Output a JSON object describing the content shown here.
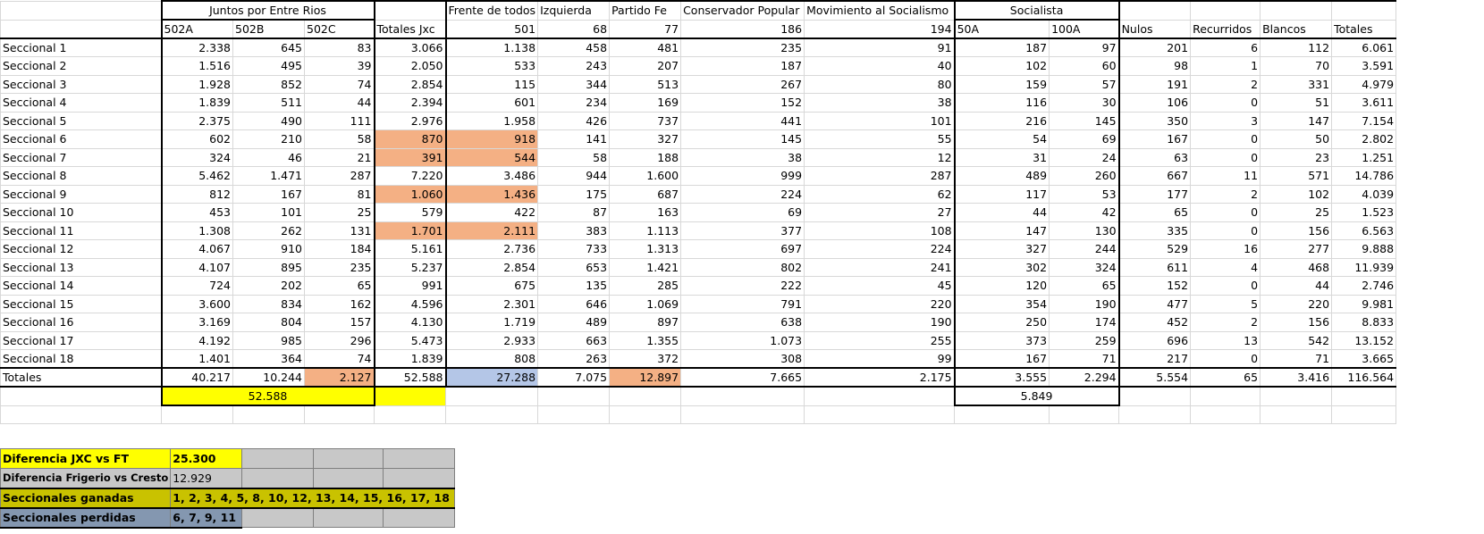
{
  "headers": {
    "group_jxc": "Juntos por Entre Rios",
    "sub_502a": "502A",
    "sub_502b": "502B",
    "sub_502c": "502C",
    "totales_jxc": "Totales Jxc",
    "frente": "Frente de todos",
    "frente_num": "501",
    "izquierda": "Izquierda",
    "izquierda_num": "68",
    "partido_fe": "Partido Fe",
    "partido_fe_num": "77",
    "conservador": "Conservador Popular",
    "conservador_num": "186",
    "mas": "Movimiento al Socialismo",
    "mas_num": "194",
    "socialista": "Socialista",
    "sub_50a": "50A",
    "sub_100a": "100A",
    "nulos": "Nulos",
    "recurridos": "Recurridos",
    "blancos": "Blancos",
    "totales": "Totales"
  },
  "rows": [
    {
      "label": "Seccional 1",
      "v": [
        "2.338",
        "645",
        "83",
        "3.066",
        "1.138",
        "458",
        "481",
        "235",
        "91",
        "187",
        "97",
        "201",
        "6",
        "112",
        "6.061"
      ]
    },
    {
      "label": "Seccional 2",
      "v": [
        "1.516",
        "495",
        "39",
        "2.050",
        "533",
        "243",
        "207",
        "187",
        "40",
        "102",
        "60",
        "98",
        "1",
        "70",
        "3.591"
      ]
    },
    {
      "label": "Seccional 3",
      "v": [
        "1.928",
        "852",
        "74",
        "2.854",
        "115",
        "344",
        "513",
        "267",
        "80",
        "159",
        "57",
        "191",
        "2",
        "331",
        "4.979"
      ]
    },
    {
      "label": "Seccional 4",
      "v": [
        "1.839",
        "511",
        "44",
        "2.394",
        "601",
        "234",
        "169",
        "152",
        "38",
        "116",
        "30",
        "106",
        "0",
        "51",
        "3.611"
      ]
    },
    {
      "label": "Seccional 5",
      "v": [
        "2.375",
        "490",
        "111",
        "2.976",
        "1.958",
        "426",
        "737",
        "441",
        "101",
        "216",
        "145",
        "350",
        "3",
        "147",
        "7.154"
      ]
    },
    {
      "label": "Seccional 6",
      "v": [
        "602",
        "210",
        "58",
        "870",
        "918",
        "141",
        "327",
        "145",
        "55",
        "54",
        "69",
        "167",
        "0",
        "50",
        "2.802"
      ]
    },
    {
      "label": "Seccional 7",
      "v": [
        "324",
        "46",
        "21",
        "391",
        "544",
        "58",
        "188",
        "38",
        "12",
        "31",
        "24",
        "63",
        "0",
        "23",
        "1.251"
      ]
    },
    {
      "label": "Seccional 8",
      "v": [
        "5.462",
        "1.471",
        "287",
        "7.220",
        "3.486",
        "944",
        "1.600",
        "999",
        "287",
        "489",
        "260",
        "667",
        "11",
        "571",
        "14.786"
      ]
    },
    {
      "label": "Seccional 9",
      "v": [
        "812",
        "167",
        "81",
        "1.060",
        "1.436",
        "175",
        "687",
        "224",
        "62",
        "117",
        "53",
        "177",
        "2",
        "102",
        "4.039"
      ]
    },
    {
      "label": "Seccional 10",
      "v": [
        "453",
        "101",
        "25",
        "579",
        "422",
        "87",
        "163",
        "69",
        "27",
        "44",
        "42",
        "65",
        "0",
        "25",
        "1.523"
      ]
    },
    {
      "label": "Seccional 11",
      "v": [
        "1.308",
        "262",
        "131",
        "1.701",
        "2.111",
        "383",
        "1.113",
        "377",
        "108",
        "147",
        "130",
        "335",
        "0",
        "156",
        "6.563"
      ]
    },
    {
      "label": "Seccional 12",
      "v": [
        "4.067",
        "910",
        "184",
        "5.161",
        "2.736",
        "733",
        "1.313",
        "697",
        "224",
        "327",
        "244",
        "529",
        "16",
        "277",
        "9.888"
      ]
    },
    {
      "label": "Seccional 13",
      "v": [
        "4.107",
        "895",
        "235",
        "5.237",
        "2.854",
        "653",
        "1.421",
        "802",
        "241",
        "302",
        "324",
        "611",
        "4",
        "468",
        "11.939"
      ]
    },
    {
      "label": "Seccional 14",
      "v": [
        "724",
        "202",
        "65",
        "991",
        "675",
        "135",
        "285",
        "222",
        "45",
        "120",
        "65",
        "152",
        "0",
        "44",
        "2.746"
      ]
    },
    {
      "label": "Seccional 15",
      "v": [
        "3.600",
        "834",
        "162",
        "4.596",
        "2.301",
        "646",
        "1.069",
        "791",
        "220",
        "354",
        "190",
        "477",
        "5",
        "220",
        "9.981"
      ]
    },
    {
      "label": "Seccional 16",
      "v": [
        "3.169",
        "804",
        "157",
        "4.130",
        "1.719",
        "489",
        "897",
        "638",
        "190",
        "250",
        "174",
        "452",
        "2",
        "156",
        "8.833"
      ]
    },
    {
      "label": "Seccional 17",
      "v": [
        "4.192",
        "985",
        "296",
        "5.473",
        "2.933",
        "663",
        "1.355",
        "1.073",
        "255",
        "373",
        "259",
        "696",
        "13",
        "542",
        "13.152"
      ]
    },
    {
      "label": "Seccional 18",
      "v": [
        "1.401",
        "364",
        "74",
        "1.839",
        "808",
        "263",
        "372",
        "308",
        "99",
        "167",
        "71",
        "217",
        "0",
        "71",
        "3.665"
      ]
    }
  ],
  "totals": {
    "label": "Totales",
    "v": [
      "40.217",
      "10.244",
      "2.127",
      "52.588",
      "27.288",
      "7.075",
      "12.897",
      "7.665",
      "2.175",
      "3.555",
      "2.294",
      "5.554",
      "65",
      "3.416",
      "116.564"
    ]
  },
  "jxc_sum": "52.588",
  "socialista_sum": "5.849",
  "highlight_rows": [
    "Seccional 6",
    "Seccional 7",
    "Seccional 9",
    "Seccional 11"
  ],
  "summary": {
    "diff_jxc_label": "Diferencia JXC vs FT",
    "diff_jxc_value": "25.300",
    "diff_frig_label": "Diferencia Frigerio vs Cresto",
    "diff_frig_value": "12.929",
    "ganadas_label": "Seccionales ganadas",
    "ganadas_value": "1, 2, 3, 4, 5, 8, 10, 12, 13, 14, 15, 16, 17, 18",
    "perdidas_label": "Seccionales perdidas",
    "perdidas_value": "6, 7, 9, 11"
  },
  "colors": {
    "orange": "#f4b084",
    "blue": "#b4c6e7",
    "yellow": "#ffff00",
    "olive": "#c9c200",
    "slate": "#8497b0"
  }
}
